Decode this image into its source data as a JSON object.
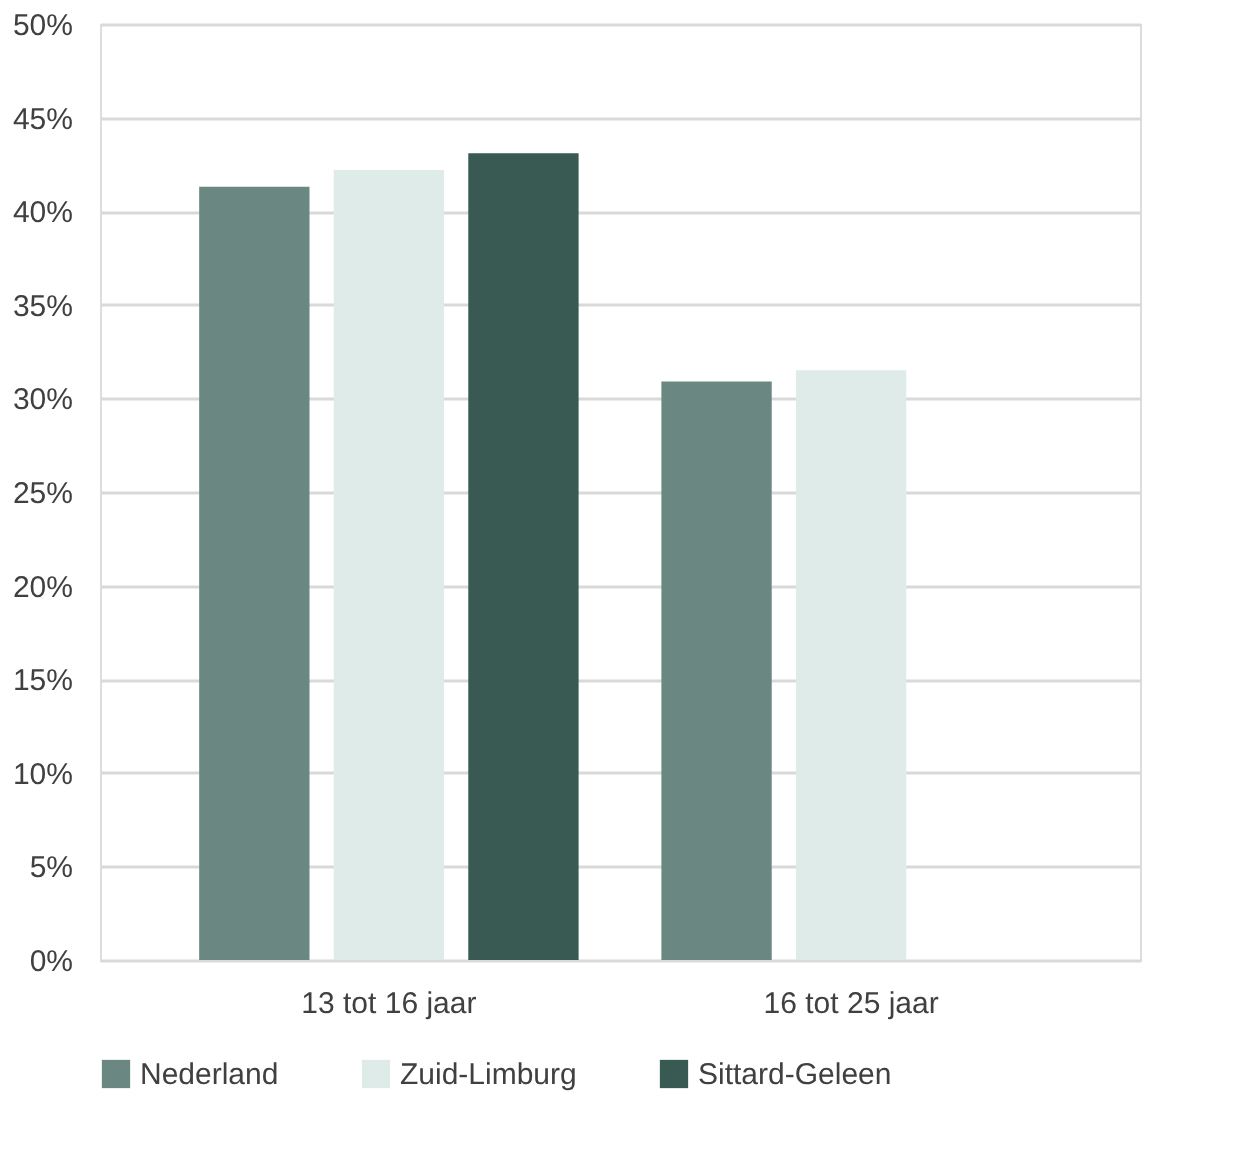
{
  "chart_data": {
    "type": "bar",
    "categories": [
      "13 tot 16 jaar",
      "16 tot 25 jaar"
    ],
    "series": [
      {
        "name": "Nederland",
        "color": "#6b8781",
        "values": [
          41.3,
          30.9
        ]
      },
      {
        "name": "Zuid-Limburg",
        "color": "#deebe8",
        "values": [
          42.2,
          31.5
        ]
      },
      {
        "name": "Sittard-Geleen",
        "color": "#385a52",
        "values": [
          43.1,
          null
        ]
      }
    ],
    "ylim": [
      0,
      50
    ],
    "yticks": [
      {
        "value": 0,
        "label": "0%"
      },
      {
        "value": 5,
        "label": "5%"
      },
      {
        "value": 10,
        "label": "10%"
      },
      {
        "value": 15,
        "label": "15%"
      },
      {
        "value": 20,
        "label": "20%"
      },
      {
        "value": 25,
        "label": "25%"
      },
      {
        "value": 30,
        "label": "30%"
      },
      {
        "value": 35,
        "label": "35%"
      },
      {
        "value": 40,
        "label": "40%"
      },
      {
        "value": 45,
        "label": "45%"
      },
      {
        "value": 50,
        "label": "50%"
      }
    ],
    "grid": "y",
    "legend": "bottom"
  }
}
